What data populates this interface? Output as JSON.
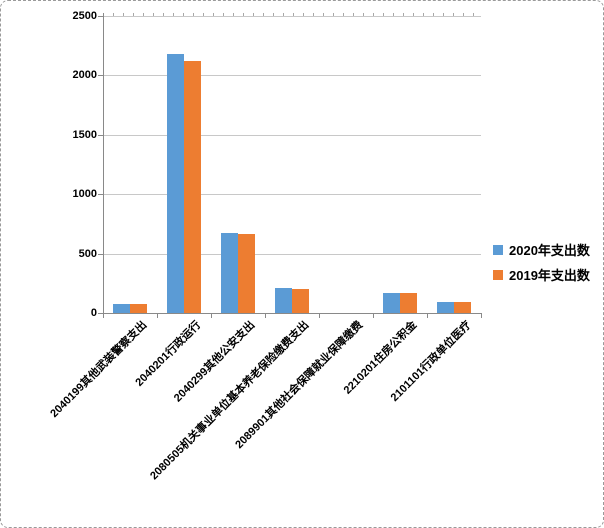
{
  "chart_data": {
    "type": "bar",
    "title": "",
    "xlabel": "",
    "ylabel": "",
    "categories": [
      "2040199其他武装警察支出",
      "2040201行政运行",
      "2040299其他公安支出",
      "2080505机关事业单位基本养老保险缴费支出",
      "2089901其他社会保障就业保障缴费",
      "2210201住房公积金",
      "2101101行政单位医疗"
    ],
    "series": [
      {
        "name": "2020年支出数",
        "color": "#5B9BD5",
        "values": [
          80,
          2180,
          670,
          215,
          0,
          170,
          90
        ]
      },
      {
        "name": "2019年支出数",
        "color": "#ED7D31",
        "values": [
          80,
          2125,
          665,
          205,
          0,
          165,
          90
        ]
      }
    ],
    "ylim": [
      0,
      2500
    ],
    "yticks": [
      0,
      500,
      1000,
      1500,
      2000,
      2500
    ],
    "grid": true,
    "legend_position": "right-middle"
  },
  "colors": {
    "gridline": "#C8C8C8",
    "axis": "#898989",
    "text": "#000000",
    "border": "#9A9A9A"
  }
}
